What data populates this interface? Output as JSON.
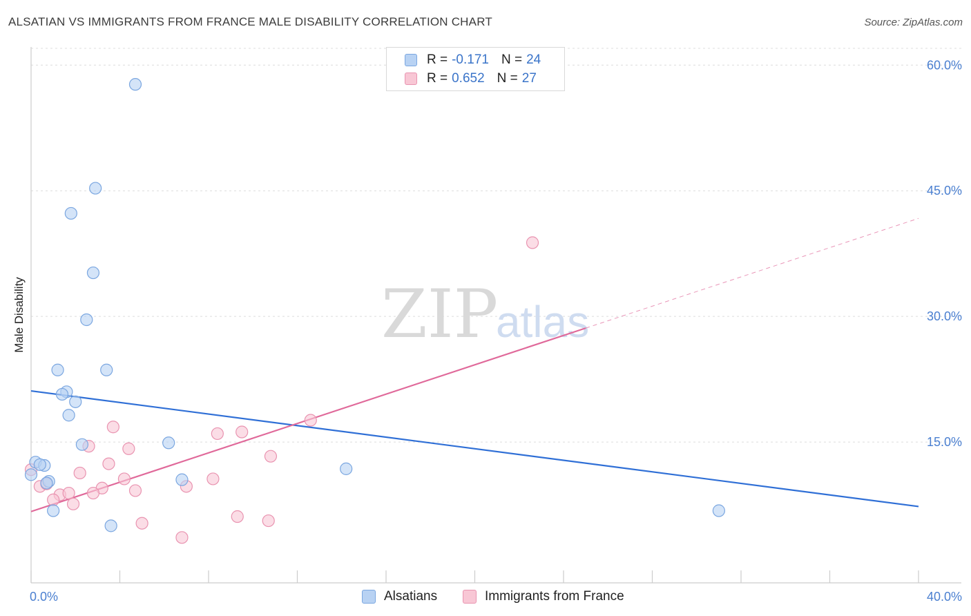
{
  "header": {
    "title": "ALSATIAN VS IMMIGRANTS FROM FRANCE MALE DISABILITY CORRELATION CHART",
    "source": "Source: ZipAtlas.com"
  },
  "watermark": {
    "zip": "ZIP",
    "atlas": "atlas"
  },
  "legend": {
    "rows": [
      {
        "r_label": "R =",
        "r_value": "-0.171",
        "n_label": "N =",
        "n_value": "24"
      },
      {
        "r_label": "R =",
        "r_value": "0.652",
        "n_label": "N =",
        "n_value": "27"
      }
    ]
  },
  "bottom_legend": {
    "series1": "Alsatians",
    "series2": "Immigrants from France"
  },
  "colors": {
    "blue_fill": "#b8d2f3",
    "blue_stroke": "#7aa6e0",
    "blue_line": "#2f6fd6",
    "pink_fill": "#f8c7d5",
    "pink_stroke": "#e993b0",
    "pink_line": "#e0699a",
    "tick_text": "#4a7fd0",
    "grid": "#dcdcdc"
  },
  "chart_data": {
    "type": "scatter",
    "title": "ALSATIAN VS IMMIGRANTS FROM FRANCE MALE DISABILITY CORRELATION CHART",
    "xlabel": "",
    "ylabel": "Male Disability",
    "xlim": [
      0,
      40
    ],
    "ylim": [
      0,
      62
    ],
    "x_tick_labels": [
      {
        "value": 0,
        "label": "0.0%"
      },
      {
        "value": 40,
        "label": "40.0%"
      }
    ],
    "y_tick_labels": [
      {
        "value": 15,
        "label": "15.0%"
      },
      {
        "value": 30,
        "label": "30.0%"
      },
      {
        "value": 45,
        "label": "45.0%"
      },
      {
        "value": 60,
        "label": "60.0%"
      }
    ],
    "series": [
      {
        "name": "Alsatians",
        "r": -0.171,
        "n": 24,
        "points": [
          [
            4.7,
            57.7
          ],
          [
            2.9,
            45.3
          ],
          [
            1.8,
            42.3
          ],
          [
            2.8,
            35.2
          ],
          [
            2.5,
            29.6
          ],
          [
            1.2,
            23.6
          ],
          [
            3.4,
            23.6
          ],
          [
            1.6,
            21.0
          ],
          [
            1.4,
            20.7
          ],
          [
            2.0,
            19.8
          ],
          [
            1.7,
            18.2
          ],
          [
            2.3,
            14.7
          ],
          [
            6.2,
            14.9
          ],
          [
            0.2,
            12.6
          ],
          [
            0.6,
            12.2
          ],
          [
            0.4,
            12.3
          ],
          [
            0.8,
            10.3
          ],
          [
            0.7,
            10.1
          ],
          [
            6.8,
            10.5
          ],
          [
            14.2,
            11.8
          ],
          [
            0.0,
            11.1
          ],
          [
            1.0,
            6.8
          ],
          [
            3.6,
            5.0
          ],
          [
            31.0,
            6.8
          ]
        ],
        "trend": {
          "x": [
            0,
            40
          ],
          "y": [
            21.1,
            7.3
          ]
        }
      },
      {
        "name": "Immigrants from France",
        "r": 0.652,
        "n": 27,
        "points": [
          [
            22.6,
            38.8
          ],
          [
            12.6,
            17.6
          ],
          [
            3.7,
            16.8
          ],
          [
            8.4,
            16.0
          ],
          [
            9.5,
            16.2
          ],
          [
            2.6,
            14.5
          ],
          [
            4.4,
            14.2
          ],
          [
            10.8,
            13.3
          ],
          [
            3.5,
            12.4
          ],
          [
            2.2,
            11.3
          ],
          [
            0.0,
            11.7
          ],
          [
            4.2,
            10.6
          ],
          [
            8.2,
            10.6
          ],
          [
            3.2,
            9.5
          ],
          [
            4.7,
            9.2
          ],
          [
            7.0,
            9.7
          ],
          [
            0.4,
            9.7
          ],
          [
            0.7,
            10.0
          ],
          [
            1.3,
            8.7
          ],
          [
            1.7,
            8.9
          ],
          [
            2.8,
            8.9
          ],
          [
            1.0,
            8.1
          ],
          [
            1.9,
            7.6
          ],
          [
            9.3,
            6.1
          ],
          [
            5.0,
            5.3
          ],
          [
            10.7,
            5.6
          ],
          [
            6.8,
            3.6
          ]
        ],
        "trend": {
          "x_solid": [
            0,
            25
          ],
          "y_solid": [
            6.7,
            28.6
          ],
          "x_dashed": [
            25,
            40
          ],
          "y_dashed": [
            28.6,
            41.7
          ]
        }
      }
    ],
    "grid": true,
    "legend_position": "top-center"
  }
}
